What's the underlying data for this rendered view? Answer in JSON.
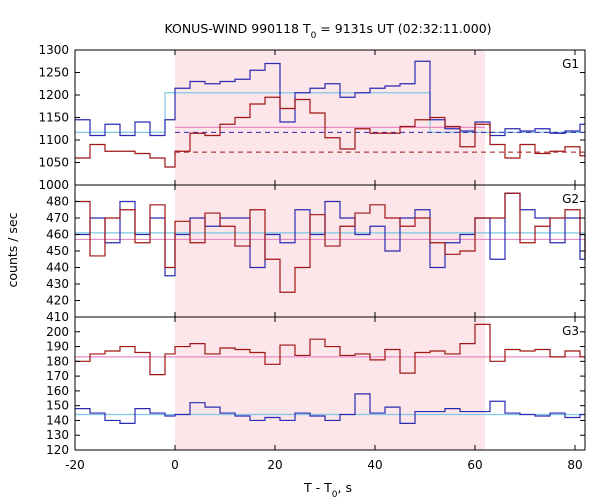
{
  "chart_data": {
    "type": "line",
    "title_main": "KONUS-WIND 990118 T",
    "title_sub": "0",
    "title_rest": " = 9131s UT (02:32:11.000)",
    "xlabel_main": "T - T",
    "xlabel_sub": "0",
    "xlabel_rest": ", s",
    "ylabel": "counts / sec",
    "xlim": [
      -20,
      82
    ],
    "x_ticks": [
      -20,
      0,
      20,
      40,
      60,
      80
    ],
    "shaded_interval": [
      0,
      62
    ],
    "colors": {
      "series_a": "#2b2bb0",
      "series_b": "#a01515",
      "bg_a": "#7ec8e3",
      "bg_b": "#e68bc4",
      "shade": "#fde6ea"
    },
    "bin_edges": [
      -20,
      -17,
      -14,
      -11,
      -8,
      -5,
      -2,
      0,
      3,
      6,
      9,
      12,
      15,
      18,
      21,
      24,
      27,
      30,
      33,
      36,
      39,
      42,
      45,
      48,
      51,
      54,
      57,
      60,
      63,
      66,
      69,
      72,
      75,
      78,
      81,
      82
    ],
    "panels": [
      {
        "name": "G1",
        "ylim": [
          1000,
          1300
        ],
        "y_ticks": [
          1000,
          1050,
          1100,
          1150,
          1200,
          1250,
          1300
        ],
        "series": [
          {
            "color_key": "series_a",
            "values": [
              1145,
              1110,
              1135,
              1110,
              1140,
              1110,
              1145,
              1215,
              1230,
              1225,
              1230,
              1235,
              1255,
              1270,
              1140,
              1205,
              1215,
              1225,
              1195,
              1205,
              1215,
              1220,
              1225,
              1275,
              1145,
              1125,
              1120,
              1140,
              1110,
              1125,
              1120,
              1125,
              1115,
              1120,
              1135,
              1135
            ]
          },
          {
            "color_key": "series_b",
            "values": [
              1060,
              1090,
              1075,
              1075,
              1070,
              1060,
              1040,
              1075,
              1115,
              1110,
              1135,
              1150,
              1180,
              1195,
              1170,
              1190,
              1160,
              1105,
              1080,
              1125,
              1115,
              1115,
              1130,
              1145,
              1150,
              1130,
              1085,
              1135,
              1090,
              1060,
              1090,
              1070,
              1075,
              1085,
              1065,
              1070
            ]
          }
        ],
        "background_levels": [
          {
            "color_key": "bg_a",
            "segments": [
              [
                -20,
                -2,
                1117
              ],
              [
                -2,
                51,
                1205
              ],
              [
                51,
                82,
                1117
              ]
            ]
          },
          {
            "color_key": "bg_b",
            "segments": [
              [
                0,
                62,
                1128
              ]
            ]
          }
        ],
        "dashed_levels": [
          {
            "color_key": "series_a",
            "x": [
              0,
              82
            ],
            "y": 1117
          },
          {
            "color_key": "series_b",
            "x": [
              0,
              82
            ],
            "y": 1073
          }
        ]
      },
      {
        "name": "G2",
        "ylim": [
          410,
          490
        ],
        "y_ticks": [
          410,
          420,
          430,
          440,
          450,
          460,
          470,
          480
        ],
        "series": [
          {
            "color_key": "series_a",
            "values": [
              460,
              470,
              455,
              480,
              460,
              470,
              435,
              460,
              470,
              465,
              470,
              470,
              440,
              460,
              455,
              475,
              460,
              480,
              470,
              460,
              465,
              450,
              470,
              475,
              440,
              455,
              460,
              470,
              445,
              485,
              475,
              470,
              455,
              470,
              445,
              460
            ]
          },
          {
            "color_key": "series_b",
            "values": [
              480,
              447,
              470,
              475,
              455,
              478,
              440,
              468,
              455,
              473,
              465,
              453,
              475,
              445,
              425,
              440,
              472,
              453,
              465,
              473,
              478,
              470,
              465,
              470,
              455,
              448,
              450,
              470,
              470,
              485,
              455,
              465,
              470,
              475,
              460,
              445
            ]
          }
        ],
        "background_levels": [
          {
            "color_key": "bg_a",
            "segments": [
              [
                -20,
                82,
                461
              ]
            ]
          },
          {
            "color_key": "bg_b",
            "segments": [
              [
                -20,
                82,
                457
              ]
            ]
          }
        ]
      },
      {
        "name": "G3",
        "ylim": [
          120,
          210
        ],
        "y_ticks": [
          120,
          130,
          140,
          150,
          160,
          170,
          180,
          190,
          200
        ],
        "series": [
          {
            "color_key": "series_a",
            "values": [
              148,
              145,
              140,
              138,
              148,
              145,
              143,
              144,
              152,
              149,
              145,
              143,
              140,
              142,
              140,
              145,
              143,
              140,
              144,
              158,
              145,
              149,
              138,
              146,
              146,
              148,
              146,
              146,
              153,
              145,
              144,
              143,
              145,
              142,
              144,
              144
            ]
          },
          {
            "color_key": "series_b",
            "values": [
              180,
              185,
              187,
              190,
              186,
              171,
              185,
              190,
              192,
              185,
              189,
              188,
              186,
              178,
              191,
              184,
              195,
              190,
              184,
              185,
              181,
              188,
              172,
              186,
              187,
              185,
              192,
              205,
              180,
              188,
              187,
              188,
              183,
              187,
              183,
              183
            ]
          }
        ],
        "background_levels": [
          {
            "color_key": "bg_a",
            "segments": [
              [
                -20,
                82,
                144
              ]
            ]
          },
          {
            "color_key": "bg_b",
            "segments": [
              [
                -20,
                82,
                183
              ]
            ]
          }
        ]
      }
    ]
  }
}
